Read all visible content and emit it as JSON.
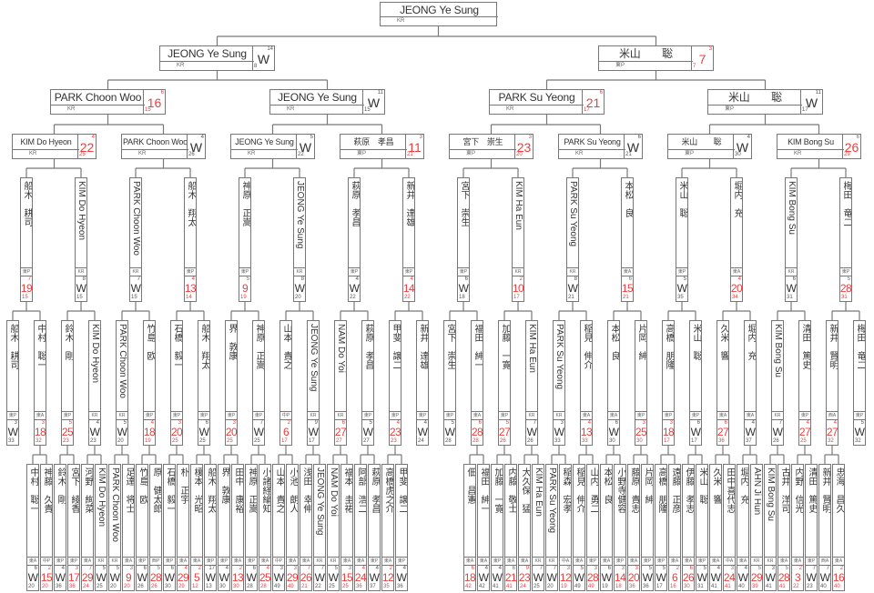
{
  "colors": {
    "loss_score": "#f03c3c",
    "line": "#777777"
  },
  "champion": {
    "name": "JEONG Ye Sung",
    "org": "KR"
  },
  "semifinals": [
    {
      "name": "JEONG Ye Sung",
      "org": "KR",
      "top": "14",
      "result": "W",
      "bottom": "8"
    },
    {
      "name": "米山　　聡",
      "org": "東P",
      "top": "3",
      "result": "7",
      "bottom": "7"
    }
  ],
  "quarterfinals": [
    {
      "name": "PARK Choon Woo",
      "org": "KR",
      "top": "6",
      "result": "16",
      "bottom": "15"
    },
    {
      "name": "JEONG Ye Sung",
      "org": "KR",
      "top": "11",
      "result": "W",
      "bottom": "15"
    },
    {
      "name": "PARK Su Yeong",
      "org": "KR",
      "top": "6",
      "result": "21",
      "bottom": "17"
    },
    {
      "name": "米山　　聡",
      "org": "東P",
      "top": "11",
      "result": "W",
      "bottom": "17"
    }
  ],
  "round_of_16": [
    {
      "name": "KIM Do Hyeon",
      "org": "KR",
      "top": "4",
      "result": "22",
      "bottom": "25"
    },
    {
      "name": "PARK Choon Woo",
      "org": "KR",
      "top": "4",
      "result": "W",
      "bottom": "26"
    },
    {
      "name": "JEONG Ye Sung",
      "org": "KR",
      "top": "5",
      "result": "W",
      "bottom": "22"
    },
    {
      "name": "萩原　孝昌",
      "org": "東P",
      "top": "3",
      "result": "11",
      "bottom": "21"
    },
    {
      "name": "宮下　崇生",
      "org": "東P",
      "top": "3",
      "result": "23",
      "bottom": "20"
    },
    {
      "name": "PARK Su Yeong",
      "org": "KR",
      "top": "6",
      "result": "W",
      "bottom": "21"
    },
    {
      "name": "米山　　聡",
      "org": "東P",
      "top": "4",
      "result": "W",
      "bottom": "30"
    },
    {
      "name": "KIM Bong Su",
      "org": "KR",
      "top": "6",
      "result": "26",
      "bottom": "29"
    }
  ],
  "round_of_32": [
    {
      "name": "船木　耕司",
      "org": "東P",
      "top": "7",
      "result": "19",
      "bottom": "15"
    },
    {
      "name": "KIM Do Hyeon",
      "org": "KR",
      "top": "8",
      "result": "W",
      "bottom": "15"
    },
    {
      "name": "PARK Choon Woo",
      "org": "KR",
      "top": "7",
      "result": "W",
      "bottom": "15"
    },
    {
      "name": "船木　翔太",
      "org": "東P",
      "top": "4",
      "result": "13",
      "bottom": "14"
    },
    {
      "name": "神原　正嵩",
      "org": "東P",
      "top": "5",
      "result": "9",
      "bottom": "19"
    },
    {
      "name": "JEONG Ye Sung",
      "org": "KR",
      "top": "8",
      "result": "W",
      "bottom": "20"
    },
    {
      "name": "萩原　孝昌",
      "org": "東P",
      "top": "4",
      "result": "W",
      "bottom": "22"
    },
    {
      "name": "新井　達雄",
      "org": "東P",
      "top": "4",
      "result": "14",
      "bottom": "22"
    },
    {
      "name": "宮下　崇生",
      "org": "東P",
      "top": "6",
      "result": "W",
      "bottom": "18"
    },
    {
      "name": "KIM Ha Eun",
      "org": "KR",
      "top": "2",
      "result": "10",
      "bottom": "17"
    },
    {
      "name": "PARK Su Yeong",
      "org": "KR",
      "top": "8",
      "result": "W",
      "bottom": "21"
    },
    {
      "name": "本松　良",
      "org": "東A",
      "top": "6",
      "result": "15",
      "bottom": "21"
    },
    {
      "name": "米山　聡",
      "org": "東P",
      "top": "5",
      "result": "W",
      "bottom": "35"
    },
    {
      "name": "堀内　充",
      "org": "東A",
      "top": "4",
      "result": "20",
      "bottom": "34"
    },
    {
      "name": "KIM Bong Su",
      "org": "KR",
      "top": "6",
      "result": "W",
      "bottom": "31"
    },
    {
      "name": "梅田　竜二",
      "org": "東P",
      "top": "5",
      "result": "28",
      "bottom": "31"
    }
  ],
  "round_2": [
    {
      "name": "船木　耕司",
      "org": "東P",
      "top": "3",
      "result": "W",
      "bottom": "33"
    },
    {
      "name": "中村　聡一",
      "org": "東A",
      "top": "3",
      "result": "18",
      "bottom": "32"
    },
    {
      "name": "鈴木　剛",
      "org": "東P",
      "top": "5",
      "result": "25",
      "bottom": "23"
    },
    {
      "name": "KIM Do Hyeon",
      "org": "KR",
      "top": "4",
      "result": "W",
      "bottom": "23"
    },
    {
      "name": "PARK Choon Woo",
      "org": "KR",
      "top": "5",
      "result": "W",
      "bottom": "20"
    },
    {
      "name": "竹島　欧",
      "org": "東P",
      "top": "4",
      "result": "18",
      "bottom": "19"
    },
    {
      "name": "石橋　毅一",
      "org": "東P",
      "top": "3",
      "result": "20",
      "bottom": "25"
    },
    {
      "name": "船木　翔太",
      "org": "東P",
      "top": "6",
      "result": "W",
      "bottom": "25"
    },
    {
      "name": "界　敦康",
      "org": "東P",
      "top": "3",
      "result": "20",
      "bottom": "25"
    },
    {
      "name": "神原　正嵩",
      "org": "東P",
      "top": "7",
      "result": "W",
      "bottom": "25"
    },
    {
      "name": "山本　貴之",
      "org": "中P",
      "top": "2",
      "result": "6",
      "bottom": "17"
    },
    {
      "name": "JEONG Ye Sung",
      "org": "KR",
      "top": "9",
      "result": "W",
      "bottom": "17"
    },
    {
      "name": "NAM Do Yoi",
      "org": "KR",
      "top": "6",
      "result": "27",
      "bottom": "27"
    },
    {
      "name": "萩原　孝昌",
      "org": "東P",
      "top": "5",
      "result": "W",
      "bottom": "27"
    },
    {
      "name": "甲斐　譲二",
      "org": "東P",
      "top": "4",
      "result": "23",
      "bottom": "23"
    },
    {
      "name": "新井　達雄",
      "org": "東P",
      "top": "4",
      "result": "W",
      "bottom": "24"
    },
    {
      "name": "宮下　崇生",
      "org": "東P",
      "top": "5",
      "result": "W",
      "bottom": "28"
    },
    {
      "name": "福田　紳一",
      "org": "東A",
      "top": "6",
      "result": "28",
      "bottom": "28"
    },
    {
      "name": "加藤　一寛",
      "org": "東P",
      "top": "5",
      "result": "27",
      "bottom": "26"
    },
    {
      "name": "KIM Ha Eun",
      "org": "KR",
      "top": "7",
      "result": "W",
      "bottom": "26"
    },
    {
      "name": "PARK Su Yeong",
      "org": "KR",
      "top": "3",
      "result": "W",
      "bottom": "33"
    },
    {
      "name": "稲見　伸介",
      "org": "東A",
      "top": "4",
      "result": "13",
      "bottom": "33"
    },
    {
      "name": "本松　良",
      "org": "東A",
      "top": "6",
      "result": "W",
      "bottom": "30"
    },
    {
      "name": "片岡　紳",
      "org": "東P",
      "top": "3",
      "result": "25",
      "bottom": "30"
    },
    {
      "name": "高橋　朋隆",
      "org": "東P",
      "top": "3",
      "result": "18",
      "bottom": "17"
    },
    {
      "name": "米山　聡",
      "org": "東P",
      "top": "6",
      "result": "W",
      "bottom": "17"
    },
    {
      "name": "久米　響",
      "org": "東A",
      "top": "6",
      "result": "27",
      "bottom": "36"
    },
    {
      "name": "堀内　充",
      "org": "東A",
      "top": "4",
      "result": "W",
      "bottom": "37"
    },
    {
      "name": "KIM Bong Su",
      "org": "KR",
      "top": "7",
      "result": "W",
      "bottom": "26"
    },
    {
      "name": "清田　篤史",
      "org": "東P",
      "top": "4",
      "result": "27",
      "bottom": "25"
    },
    {
      "name": "新井　賢明",
      "org": "西A",
      "top": "4",
      "result": "27",
      "bottom": "32"
    },
    {
      "name": "梅田　竜二",
      "org": "東P",
      "top": "5",
      "result": "W",
      "bottom": "32"
    }
  ],
  "round_1": [
    {
      "name": "中村　聡一",
      "org": "東A",
      "top": "6",
      "result": "W",
      "bottom": "20"
    },
    {
      "name": "神藤　久貴",
      "org": "中P",
      "top": "2",
      "result": "15",
      "bottom": "20"
    },
    {
      "name": "鈴木　剛",
      "org": "東P",
      "top": "4",
      "result": "W",
      "bottom": "36"
    },
    {
      "name": "宮下　綾香",
      "org": "東P",
      "top": "3",
      "result": "17",
      "bottom": "36"
    },
    {
      "name": "河野　絢菜",
      "org": "東A",
      "top": "7",
      "result": "29",
      "bottom": "24"
    },
    {
      "name": "KIM Do Hyeon",
      "org": "KR",
      "top": "5",
      "result": "W",
      "bottom": "25"
    },
    {
      "name": "PARK Choon Woo",
      "org": "KR",
      "top": "5",
      "result": "W",
      "bottom": "20"
    },
    {
      "name": "足達　将士",
      "org": "東A",
      "top": "3",
      "result": "9",
      "bottom": "20"
    },
    {
      "name": "竹島　欧",
      "org": "東P",
      "top": "6",
      "result": "W",
      "bottom": "26"
    },
    {
      "name": "原　健太郎",
      "org": "西P",
      "top": "5",
      "result": "28",
      "bottom": "26"
    },
    {
      "name": "石橋　毅一",
      "org": "東P",
      "top": "6",
      "result": "W",
      "bottom": "30"
    },
    {
      "name": "朴　正宇",
      "org": "東A",
      "top": "4",
      "result": "29",
      "bottom": "29"
    },
    {
      "name": "榎本　光昭",
      "org": "東A",
      "top": "2",
      "result": "5",
      "bottom": "12"
    },
    {
      "name": "船木　翔太",
      "org": "東P",
      "top": "17",
      "result": "W",
      "bottom": "13"
    },
    {
      "name": "界　敦康",
      "org": "東P",
      "top": "4",
      "result": "W",
      "bottom": "30"
    },
    {
      "name": "田中　康裕",
      "org": "東A",
      "top": "2",
      "result": "13",
      "bottom": "30"
    },
    {
      "name": "神原　正嵩",
      "org": "東P",
      "top": "6",
      "result": "W",
      "bottom": "28"
    },
    {
      "name": "小諸経綸知",
      "org": "東A",
      "top": "4",
      "result": "25",
      "bottom": "28"
    },
    {
      "name": "山本　貴之",
      "org": "中P",
      "top": "3",
      "result": "W",
      "bottom": "49"
    },
    {
      "name": "小池　朗人",
      "org": "東A",
      "top": "3",
      "result": "29",
      "bottom": "49"
    },
    {
      "name": "浅田　幸伸",
      "org": "東A",
      "top": "7",
      "result": "26",
      "bottom": "21"
    },
    {
      "name": "JEONG Ye Sung",
      "org": "KR",
      "top": "7",
      "result": "W",
      "bottom": "22"
    },
    {
      "name": "NAM Do Yoi",
      "org": "KR",
      "top": "5",
      "result": "W",
      "bottom": "25"
    },
    {
      "name": "福本　圭祐",
      "org": "東A",
      "top": "3",
      "result": "15",
      "bottom": "25"
    },
    {
      "name": "阿部　浩二",
      "org": "東A",
      "top": "4",
      "result": "24",
      "bottom": "36"
    },
    {
      "name": "萩原　孝昌",
      "org": "東P",
      "top": "4",
      "result": "W",
      "bottom": "37"
    },
    {
      "name": "高橋虎之介",
      "org": "東A",
      "top": "2",
      "result": "12",
      "bottom": "35"
    },
    {
      "name": "甲斐　譲二",
      "org": "東P",
      "top": "4",
      "result": "W",
      "bottom": "36"
    },
    {
      "name": "佃　昌憲",
      "org": "東A",
      "top": "6",
      "result": "18",
      "bottom": "42"
    },
    {
      "name": "福田　紳一",
      "org": "東A",
      "top": "4",
      "result": "W",
      "bottom": "42"
    },
    {
      "name": "加藤　一寛",
      "org": "東P",
      "top": "4",
      "result": "W",
      "bottom": "41"
    },
    {
      "name": "内藤　敬士",
      "org": "東A",
      "top": "6",
      "result": "21",
      "bottom": "41"
    },
    {
      "name": "大久保　猛",
      "org": "東A",
      "top": "9",
      "result": "23",
      "bottom": "24"
    },
    {
      "name": "KIM Ha Eun",
      "org": "KR",
      "top": "7",
      "result": "W",
      "bottom": "25"
    },
    {
      "name": "PARK Su Yeong",
      "org": "KR",
      "top": "7",
      "result": "W",
      "bottom": "20"
    },
    {
      "name": "稲森　宏孝",
      "org": "中A",
      "top": "3",
      "result": "12",
      "bottom": "19"
    },
    {
      "name": "稲見　伸介",
      "org": "東A",
      "top": "5",
      "result": "W",
      "bottom": "49"
    },
    {
      "name": "山内　勇二",
      "org": "東P",
      "top": "3",
      "result": "28",
      "bottom": "49"
    },
    {
      "name": "本松　良",
      "org": "東A",
      "top": "6",
      "result": "W",
      "bottom": "19"
    },
    {
      "name": "小野寺健容",
      "org": "東P",
      "top": "3",
      "result": "14",
      "bottom": "18"
    },
    {
      "name": "藤原　貴志",
      "org": "東A",
      "top": "3",
      "result": "20",
      "bottom": "36"
    },
    {
      "name": "片岡　紳",
      "org": "東P",
      "top": "5",
      "result": "W",
      "bottom": "36"
    },
    {
      "name": "高橋　朋隆",
      "org": "東P",
      "top": "5",
      "result": "W",
      "bottom": "17"
    },
    {
      "name": "遠藤　正彦",
      "org": "東A",
      "top": "2",
      "result": "6",
      "bottom": "16"
    },
    {
      "name": "伊藤　孝志",
      "org": "東A",
      "top": "6",
      "result": "26",
      "bottom": "30"
    },
    {
      "name": "米山　聡",
      "org": "東P",
      "top": "5",
      "result": "W",
      "bottom": "31"
    },
    {
      "name": "久米　響",
      "org": "東A",
      "top": "4",
      "result": "W",
      "bottom": "41"
    },
    {
      "name": "田中喜代志",
      "org": "中A",
      "top": "3",
      "result": "24",
      "bottom": "41"
    },
    {
      "name": "堀内　充",
      "org": "東A",
      "top": "4",
      "result": "W",
      "bottom": "40"
    },
    {
      "name": "AHN Ji Hun",
      "org": "KR",
      "top": "5",
      "result": "29",
      "bottom": "39"
    },
    {
      "name": "KIM Bong Su",
      "org": "KR",
      "top": "3",
      "result": "W",
      "bottom": "41"
    },
    {
      "name": "古井　洋司",
      "org": "東A",
      "top": "5",
      "result": "28",
      "bottom": "41"
    },
    {
      "name": "内野　信光",
      "org": "東A",
      "top": "2",
      "result": "3",
      "bottom": "22"
    },
    {
      "name": "清田　篤史",
      "org": "東P",
      "top": "7",
      "result": "W",
      "bottom": "23"
    },
    {
      "name": "新井　賢明",
      "org": "西A",
      "top": "7",
      "result": "W",
      "bottom": "40"
    },
    {
      "name": "忠海　昌久",
      "org": "東A",
      "top": "2",
      "result": "16",
      "bottom": "40"
    }
  ]
}
